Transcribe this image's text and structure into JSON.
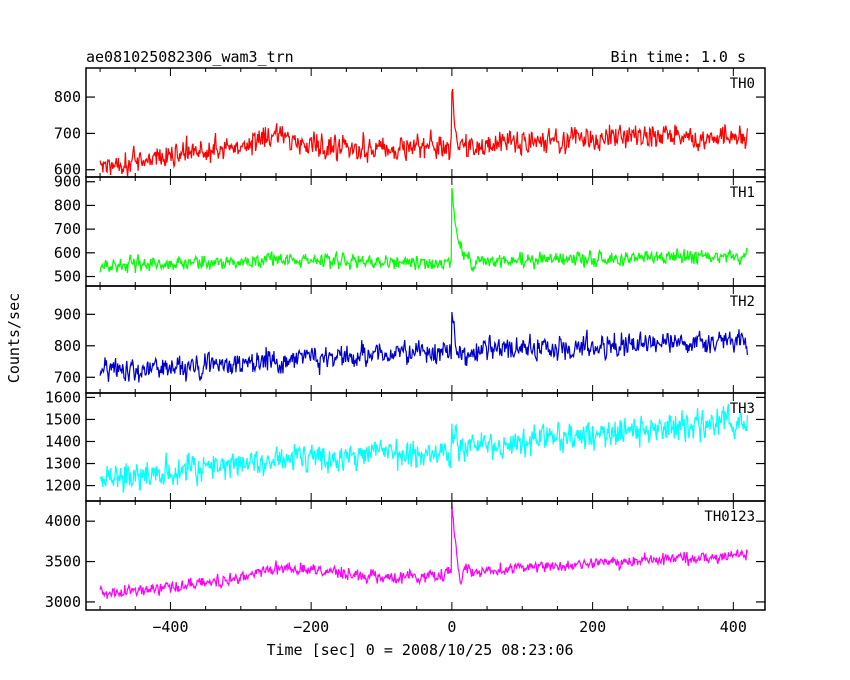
{
  "header": {
    "title": "ae081025082306_wam3_trn",
    "bin_time": "Bin time: 1.0 s"
  },
  "chart_data": {
    "type": "line",
    "title": "ae081025082306_wam3_trn",
    "xlabel": "Time [sec] 0 = 2008/10/25 08:23:06",
    "ylabel": "Counts/sec",
    "xlim": [
      -520,
      445
    ],
    "x_ticks": [
      -400,
      -200,
      0,
      200,
      400
    ],
    "x_tick_labels": [
      "−400",
      "−200",
      "0",
      "200",
      "400"
    ],
    "x_range": [
      -500,
      420
    ],
    "bin_time_s": 1.0,
    "panels": [
      {
        "name": "TH0",
        "color": "#ff0000",
        "ylim": [
          580,
          880
        ],
        "ticks": [
          600,
          700,
          800
        ],
        "trend": [
          [
            -500,
            610
          ],
          [
            -400,
            640
          ],
          [
            -300,
            665
          ],
          [
            -260,
            700
          ],
          [
            -200,
            668
          ],
          [
            -100,
            660
          ],
          [
            -20,
            665
          ],
          [
            0,
            660
          ],
          [
            100,
            675
          ],
          [
            200,
            690
          ],
          [
            300,
            690
          ],
          [
            420,
            685
          ]
        ],
        "noise": 25,
        "flare": {
          "t0": 0,
          "peak": 170,
          "decay": 6,
          "dip_at": 8,
          "dip": -70
        }
      },
      {
        "name": "TH1",
        "color": "#00ff00",
        "ylim": [
          460,
          920
        ],
        "ticks": [
          500,
          600,
          700,
          800,
          900
        ],
        "trend": [
          [
            -500,
            545
          ],
          [
            -400,
            555
          ],
          [
            -300,
            565
          ],
          [
            -200,
            570
          ],
          [
            -100,
            560
          ],
          [
            -20,
            550
          ],
          [
            0,
            565
          ],
          [
            100,
            570
          ],
          [
            200,
            575
          ],
          [
            300,
            580
          ],
          [
            420,
            590
          ]
        ],
        "noise": 22,
        "flare": {
          "t0": 0,
          "peak": 330,
          "decay": 7,
          "dip_at": 30,
          "dip": -40
        }
      },
      {
        "name": "TH2",
        "color": "#0000cc",
        "ylim": [
          650,
          990
        ],
        "ticks": [
          700,
          800,
          900
        ],
        "trend": [
          [
            -500,
            720
          ],
          [
            -400,
            730
          ],
          [
            -300,
            750
          ],
          [
            -200,
            760
          ],
          [
            -100,
            770
          ],
          [
            -20,
            775
          ],
          [
            0,
            780
          ],
          [
            100,
            790
          ],
          [
            200,
            800
          ],
          [
            300,
            805
          ],
          [
            420,
            810
          ]
        ],
        "noise": 28,
        "flare": {
          "t0": 0,
          "peak": 160,
          "decay": 4,
          "dip_at": 20,
          "dip": -30
        }
      },
      {
        "name": "TH3",
        "color": "#00ffff",
        "ylim": [
          1130,
          1620
        ],
        "ticks": [
          1200,
          1300,
          1400,
          1500,
          1600
        ],
        "trend": [
          [
            -500,
            1230
          ],
          [
            -400,
            1270
          ],
          [
            -300,
            1300
          ],
          [
            -200,
            1330
          ],
          [
            -100,
            1345
          ],
          [
            0,
            1370
          ],
          [
            100,
            1400
          ],
          [
            200,
            1430
          ],
          [
            300,
            1460
          ],
          [
            420,
            1490
          ]
        ],
        "noise": 50,
        "flare": {
          "t0": 0,
          "peak": 90,
          "decay": 6,
          "dip_at": 20,
          "dip": 0
        }
      },
      {
        "name": "TH0123",
        "color": "#ff00ff",
        "ylim": [
          2900,
          4250
        ],
        "ticks": [
          3000,
          3500,
          4000
        ],
        "trend": [
          [
            -500,
            3100
          ],
          [
            -400,
            3180
          ],
          [
            -300,
            3300
          ],
          [
            -250,
            3430
          ],
          [
            -200,
            3400
          ],
          [
            -100,
            3300
          ],
          [
            -20,
            3330
          ],
          [
            0,
            3360
          ],
          [
            100,
            3430
          ],
          [
            200,
            3470
          ],
          [
            300,
            3520
          ],
          [
            420,
            3580
          ]
        ],
        "noise": 55,
        "flare": {
          "t0": 0,
          "peak": 850,
          "decay": 6,
          "dip_at": 12,
          "dip": -250
        }
      }
    ]
  }
}
